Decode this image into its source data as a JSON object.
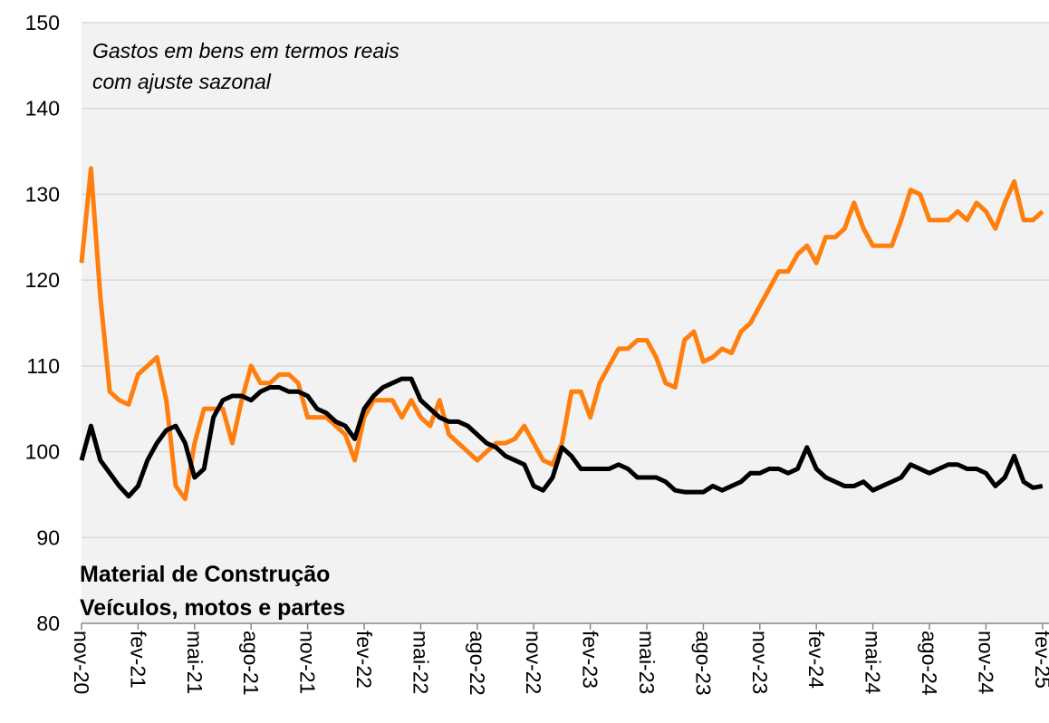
{
  "chart_data": {
    "type": "line",
    "annotation": [
      "Gastos em bens em termos reais",
      "com ajuste sazonal"
    ],
    "categories": [
      "nov-20",
      null,
      null,
      null,
      null,
      null,
      "fev-21",
      null,
      null,
      null,
      null,
      null,
      "mai-21",
      null,
      null,
      null,
      null,
      null,
      "ago-21",
      null,
      null,
      null,
      null,
      null,
      "nov-21",
      null,
      null,
      null,
      null,
      null,
      "fev-22",
      null,
      null,
      null,
      null,
      null,
      "mai-22",
      null,
      null,
      null,
      null,
      null,
      "ago-22",
      null,
      null,
      null,
      null,
      null,
      "nov-22",
      null,
      null,
      null,
      null,
      null,
      "fev-23",
      null,
      null,
      null,
      null,
      null,
      "mai-23",
      null,
      null,
      null,
      null,
      null,
      "ago-23",
      null,
      null,
      null,
      null,
      null,
      "nov-23",
      null,
      null,
      null,
      null,
      null,
      "fev-24",
      null,
      null,
      null,
      null,
      null,
      "mai-24",
      null,
      null,
      null,
      null,
      null,
      "ago-24",
      null,
      null,
      null,
      null,
      null,
      "nov-24",
      null,
      null,
      null,
      null,
      null,
      "fev-25"
    ],
    "series": [
      {
        "name": "Material de Construção",
        "color": "#000000",
        "values": [
          99,
          103,
          99,
          97.5,
          96,
          94.8,
          96,
          99,
          101,
          102.5,
          103,
          101,
          97,
          98,
          104,
          106,
          106.5,
          106.5,
          106,
          107,
          107.5,
          107.5,
          107,
          107,
          106.5,
          105,
          104.5,
          103.5,
          103,
          101.5,
          105,
          106.5,
          107.5,
          108,
          108.5,
          108.5,
          106,
          105,
          104,
          103.5,
          103.5,
          103,
          102,
          101,
          100.5,
          99.5,
          99,
          98.5,
          96,
          95.5,
          97,
          100.5,
          99.5,
          98,
          98,
          98,
          98,
          98.5,
          98,
          97,
          97,
          97,
          96.5,
          95.5,
          95.3,
          95.3,
          95.3,
          96,
          95.5,
          96,
          96.5,
          97.5,
          97.5,
          98,
          98,
          97.5,
          98,
          100.5,
          98,
          97,
          96.5,
          96,
          96,
          96.5,
          95.5,
          96,
          96.5,
          97,
          98.5,
          98,
          97.5,
          98,
          98.5,
          98.5,
          98,
          98,
          97.5,
          96,
          97,
          99.5,
          96.5,
          95.8,
          96
        ]
      },
      {
        "name": "Veículos, motos e partes",
        "color": "#ff7f0e",
        "values": [
          122,
          133,
          118,
          107,
          106,
          105.5,
          109,
          110,
          111,
          106,
          96,
          94.5,
          101,
          105,
          105,
          105,
          101,
          106,
          110,
          108,
          108,
          109,
          109,
          108,
          104,
          104,
          104,
          103,
          102,
          99,
          104,
          106,
          106,
          106,
          104,
          106,
          104,
          103,
          106,
          102,
          101,
          100,
          99,
          100,
          101,
          101,
          101.5,
          103,
          101,
          99,
          98.5,
          101,
          107,
          107,
          104,
          108,
          110,
          112,
          112,
          113,
          113,
          111,
          108,
          107.5,
          113,
          114,
          110.5,
          111,
          112,
          111.5,
          114,
          115,
          117,
          119,
          121,
          121,
          123,
          124,
          122,
          125,
          125,
          126,
          129,
          126,
          124,
          124,
          124,
          127,
          130.5,
          130,
          127,
          127,
          127,
          128,
          127,
          129,
          128,
          126,
          129,
          131.5,
          127,
          127,
          128
        ]
      }
    ],
    "ylim": [
      80,
      150
    ],
    "yticks": [
      80,
      90,
      100,
      110,
      120,
      130,
      140,
      150
    ],
    "grid": true
  }
}
